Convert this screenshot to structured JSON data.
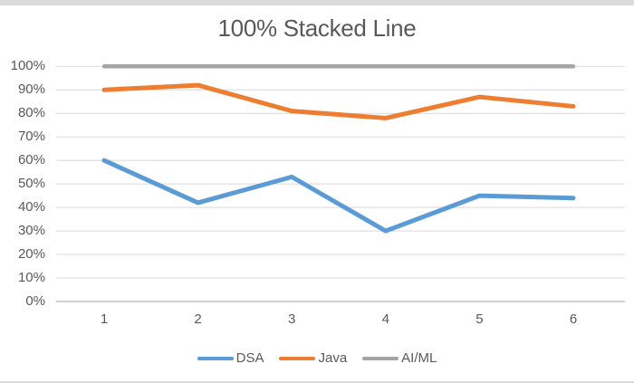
{
  "chart_data": {
    "type": "line",
    "title": "100% Stacked Line",
    "categories": [
      "1",
      "2",
      "3",
      "4",
      "5",
      "6"
    ],
    "series": [
      {
        "name": "DSA",
        "color": "#5B9BD5",
        "values": [
          60,
          42,
          53,
          30,
          45,
          44
        ]
      },
      {
        "name": "Java",
        "color": "#ED7D31",
        "values": [
          90,
          92,
          81,
          78,
          87,
          83
        ]
      },
      {
        "name": "AI/ML",
        "color": "#A5A5A5",
        "values": [
          100,
          100,
          100,
          100,
          100,
          100
        ]
      }
    ],
    "y_ticks": [
      "100%",
      "90%",
      "80%",
      "70%",
      "60%",
      "50%",
      "40%",
      "30%",
      "20%",
      "10%",
      "0%"
    ],
    "ylim": [
      0,
      100
    ],
    "xlabel": "",
    "ylabel": "",
    "grid": true,
    "legend_position": "bottom",
    "colors": {
      "gridline": "#d9d9d9",
      "axis_line": "#bfbfbf",
      "text": "#595959"
    }
  }
}
